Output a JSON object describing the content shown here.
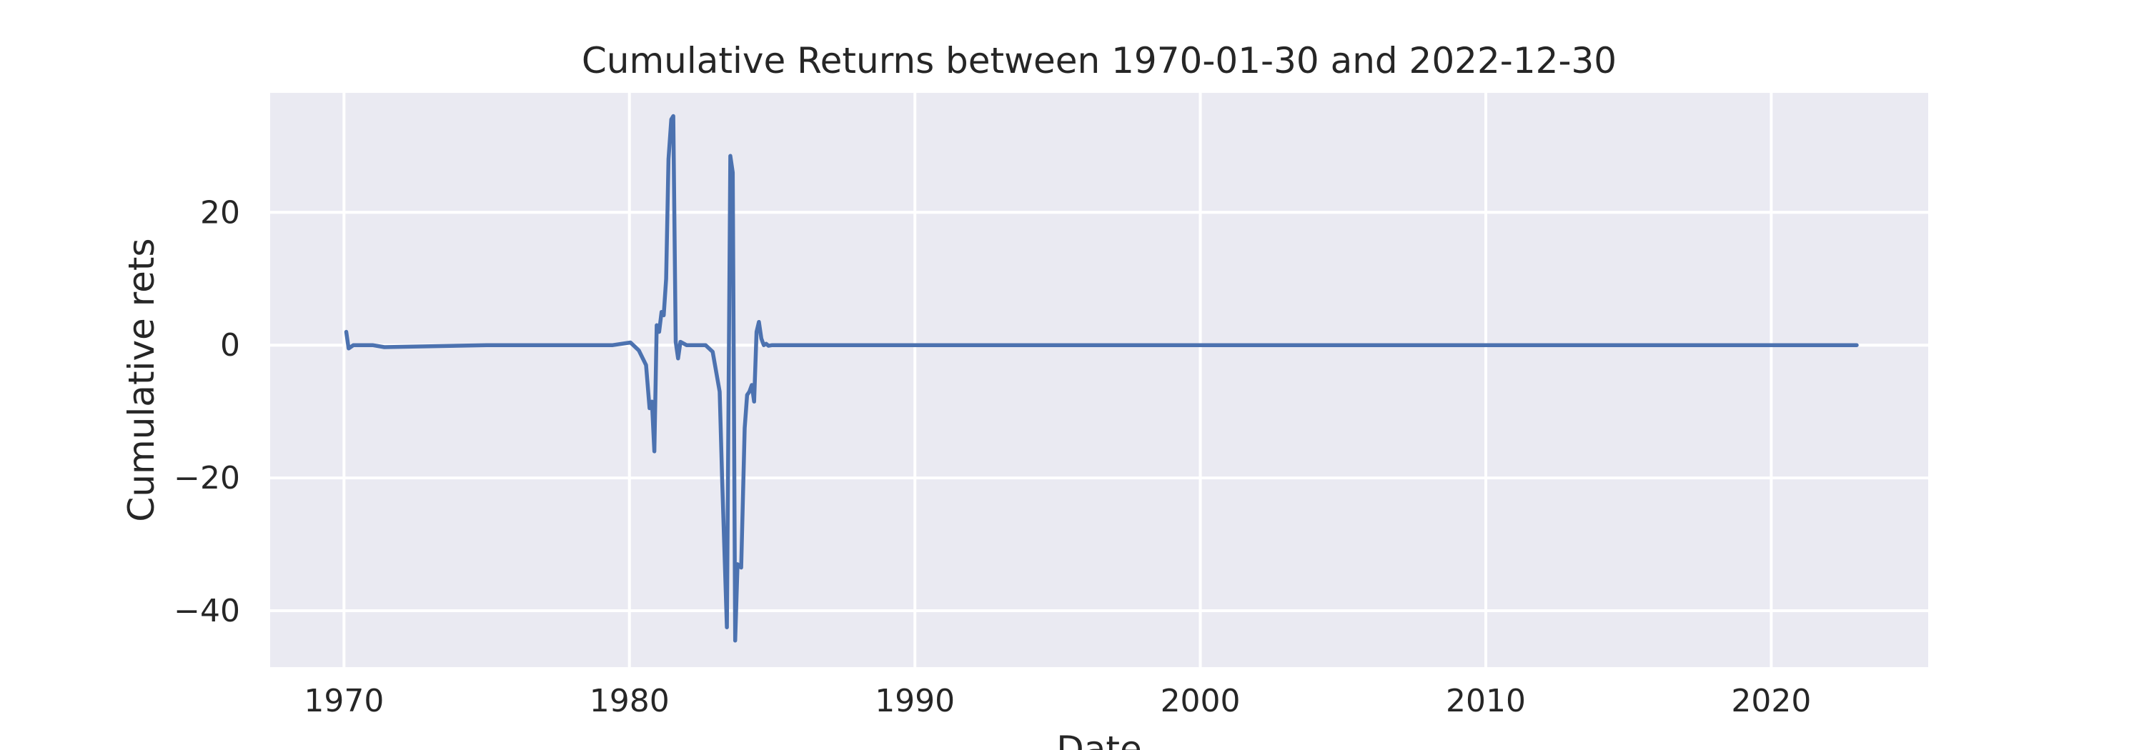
{
  "chart_data": {
    "type": "line",
    "title": "Cumulative Returns between 1970-01-30 and 2022-12-30",
    "xlabel": "Date",
    "ylabel": "Cumulative rets",
    "xlim": [
      "1967-06-01",
      "2025-07-01"
    ],
    "ylim": [
      -48.5,
      38.0
    ],
    "x_ticks": [
      {
        "value": "1970-01-01",
        "label": "1970"
      },
      {
        "value": "1980-01-01",
        "label": "1980"
      },
      {
        "value": "1990-01-01",
        "label": "1990"
      },
      {
        "value": "2000-01-01",
        "label": "2000"
      },
      {
        "value": "2010-01-01",
        "label": "2010"
      },
      {
        "value": "2020-01-01",
        "label": "2020"
      }
    ],
    "y_ticks": [
      {
        "value": 20,
        "label": "20"
      },
      {
        "value": 0,
        "label": "0"
      },
      {
        "value": -20,
        "label": "−20"
      },
      {
        "value": -40,
        "label": "−40"
      }
    ],
    "grid": true,
    "background_color": "#eaeaf2",
    "series": [
      {
        "color": "#4c72b0",
        "x": [
          "1970-01-30",
          "1970-03-01",
          "1970-05-01",
          "1971-01-01",
          "1971-06-01",
          "1975-01-01",
          "1979-06-01",
          "1980-01-15",
          "1980-05-01",
          "1980-08-01",
          "1980-09-15",
          "1980-10-15",
          "1980-11-15",
          "1980-12-15",
          "1981-01-15",
          "1981-02-15",
          "1981-03-15",
          "1981-04-15",
          "1981-05-15",
          "1981-06-20",
          "1981-07-15",
          "1981-08-15",
          "1981-09-15",
          "1981-10-15",
          "1982-01-01",
          "1982-06-01",
          "1982-09-01",
          "1982-12-01",
          "1983-03-01",
          "1983-04-01",
          "1983-06-01",
          "1983-07-15",
          "1983-08-15",
          "1983-09-15",
          "1983-10-15",
          "1983-12-01",
          "1984-01-15",
          "1984-02-15",
          "1984-03-15",
          "1984-04-15",
          "1984-05-15",
          "1984-06-15",
          "1984-07-15",
          "1984-08-15",
          "1984-09-15",
          "1984-10-15",
          "1984-11-15",
          "1985-01-01",
          "1985-04-01",
          "1990-01-01",
          "2000-01-01",
          "2010-01-01",
          "2022-12-30"
        ],
        "y": [
          2.0,
          -0.5,
          0.0,
          0.0,
          -0.3,
          0.0,
          0.0,
          0.4,
          -0.8,
          -3.0,
          -9.5,
          -8.5,
          -16.0,
          3.0,
          2.0,
          5.0,
          4.5,
          10.0,
          28.0,
          34.0,
          34.5,
          0.5,
          -2.0,
          0.5,
          0.0,
          0.0,
          0.0,
          -1.0,
          -7.0,
          -20.0,
          -42.5,
          28.5,
          26.0,
          -44.5,
          -33.0,
          -33.5,
          -12.5,
          -7.5,
          -7.0,
          -6.0,
          -8.5,
          2.0,
          3.5,
          1.0,
          0.0,
          0.2,
          -0.1,
          0.0,
          0.0,
          0.0,
          0.0,
          0.0,
          0.0
        ]
      }
    ]
  }
}
